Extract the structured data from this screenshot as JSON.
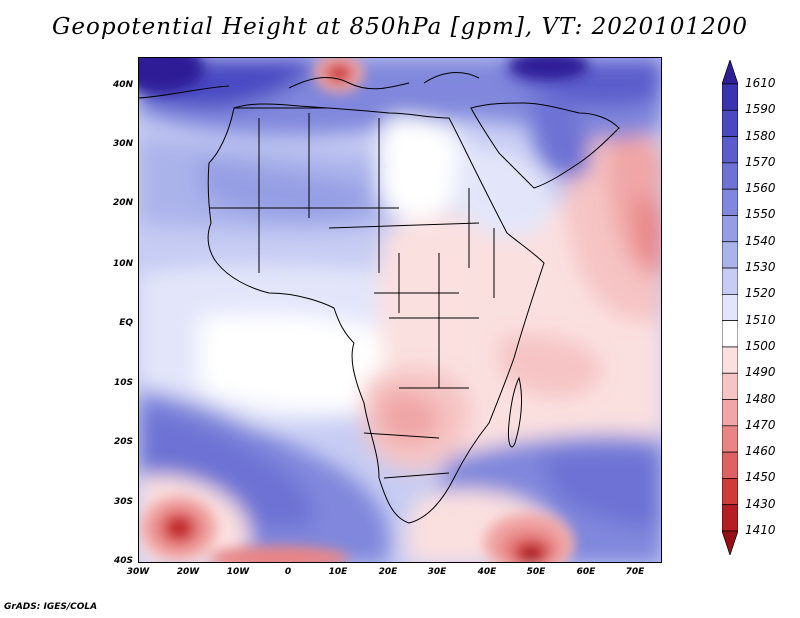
{
  "title": "Geopotential Height at 850hPa [gpm], VT: 2020101200",
  "lat_labels": [
    "40N",
    "30N",
    "20N",
    "10N",
    "EQ",
    "10S",
    "20S",
    "30S",
    "40S"
  ],
  "lon_labels": [
    "30W",
    "20W",
    "10W",
    "0",
    "10E",
    "20E",
    "30E",
    "40E",
    "50E",
    "60E",
    "70E"
  ],
  "colorbar": {
    "labels": [
      "1610",
      "1590",
      "1580",
      "1570",
      "1560",
      "1550",
      "1540",
      "1530",
      "1520",
      "1510",
      "1500",
      "1490",
      "1480",
      "1470",
      "1460",
      "1450",
      "1430",
      "1410"
    ],
    "colors": [
      "#2e1f96",
      "#3a34b0",
      "#4a49c2",
      "#5b5dcc",
      "#6d72d4",
      "#8087dc",
      "#959ee4",
      "#abb3eb",
      "#c6ccf3",
      "#e3e6fa",
      "#ffffff",
      "#fbe0e0",
      "#f6c4c4",
      "#f0a6a6",
      "#e98585",
      "#df6262",
      "#cf3a3a",
      "#b51e23",
      "#961015"
    ]
  },
  "footer": "GrADS: IGES/COLA"
}
